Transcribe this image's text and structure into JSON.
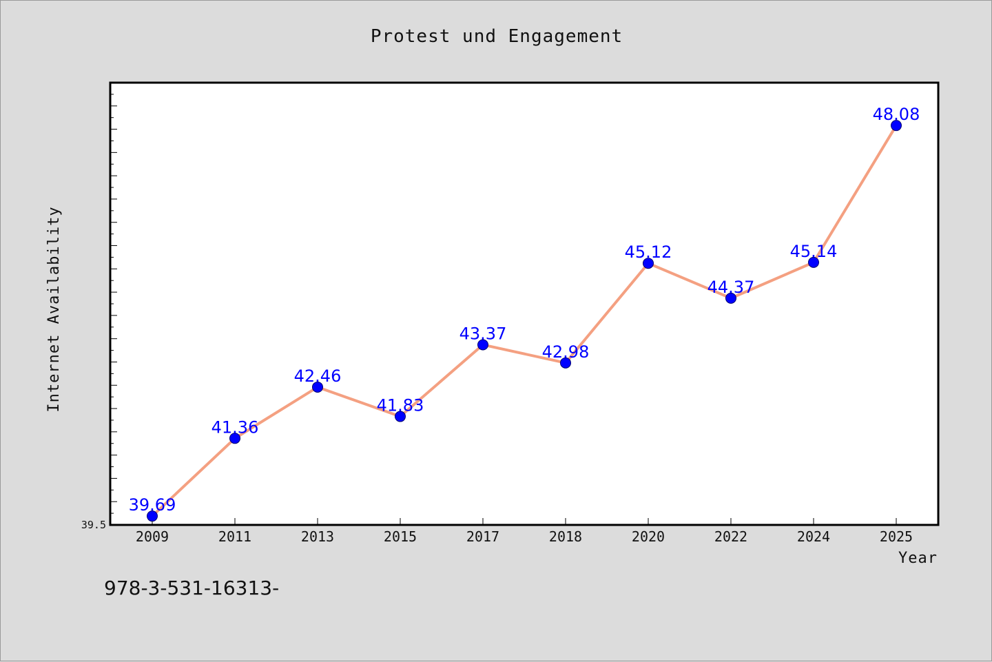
{
  "chart_data": {
    "type": "line",
    "title": "Protest und Engagement",
    "xlabel": "Year",
    "ylabel": "Internet Availability",
    "categories": [
      "2009",
      "2011",
      "2013",
      "2015",
      "2017",
      "2018",
      "2020",
      "2022",
      "2024",
      "2025"
    ],
    "series": [
      {
        "values": [
          39.69,
          41.36,
          42.46,
          41.83,
          43.37,
          42.98,
          45.12,
          44.37,
          45.14,
          48.08
        ],
        "labels": [
          "39.69",
          "41.36",
          "42.46",
          "41.83",
          "43.37",
          "42.98",
          "45.12",
          "44.37",
          "45.14",
          "48.08"
        ]
      }
    ],
    "ylim": [
      39.5,
      49.0
    ],
    "yticks_labeled": [
      "39.5"
    ],
    "grid": false,
    "line_color": "#f4a081",
    "marker_color": "#0000ff",
    "label_color": "#0000ff"
  },
  "footer": {
    "text": "978-3-531-16313-"
  }
}
